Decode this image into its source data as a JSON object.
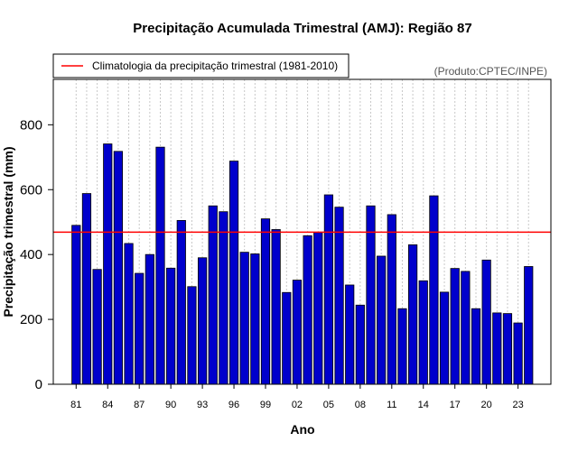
{
  "chart_data": {
    "type": "bar",
    "title": "Precipitação Acumulada Trimestral (AMJ): Região 87",
    "xlabel": "Ano",
    "ylabel": "Precipitação trimestral (mm)",
    "ylim": [
      0,
      940
    ],
    "yticks": [
      0,
      200,
      400,
      600,
      800
    ],
    "grid": "vertical dotted",
    "credit": "(Produto:CPTEC/INPE)",
    "bar_color": "#0000cc",
    "reference_line": {
      "label": "Climatologia da precipitação trimestral (1981-2010)",
      "value": 469,
      "color": "#ff0000",
      "legend_position": "top-left"
    },
    "xtick_labels": [
      "81",
      "84",
      "87",
      "90",
      "93",
      "96",
      "99",
      "02",
      "05",
      "08",
      "11",
      "14",
      "17",
      "20",
      "23"
    ],
    "categories": [
      1981,
      1982,
      1983,
      1984,
      1985,
      1986,
      1987,
      1988,
      1989,
      1990,
      1991,
      1992,
      1993,
      1994,
      1995,
      1996,
      1997,
      1998,
      1999,
      2000,
      2001,
      2002,
      2003,
      2004,
      2005,
      2006,
      2007,
      2008,
      2009,
      2010,
      2011,
      2012,
      2013,
      2014,
      2015,
      2016,
      2017,
      2018,
      2019,
      2020,
      2021,
      2022,
      2023,
      2024
    ],
    "values": [
      490,
      588,
      354,
      741,
      718,
      434,
      342,
      400,
      731,
      358,
      505,
      301,
      390,
      550,
      532,
      688,
      407,
      402,
      510,
      477,
      283,
      321,
      458,
      468,
      584,
      546,
      306,
      244,
      550,
      395,
      523,
      233,
      430,
      319,
      581,
      284,
      357,
      348,
      233,
      383,
      220,
      218,
      189,
      363
    ]
  }
}
